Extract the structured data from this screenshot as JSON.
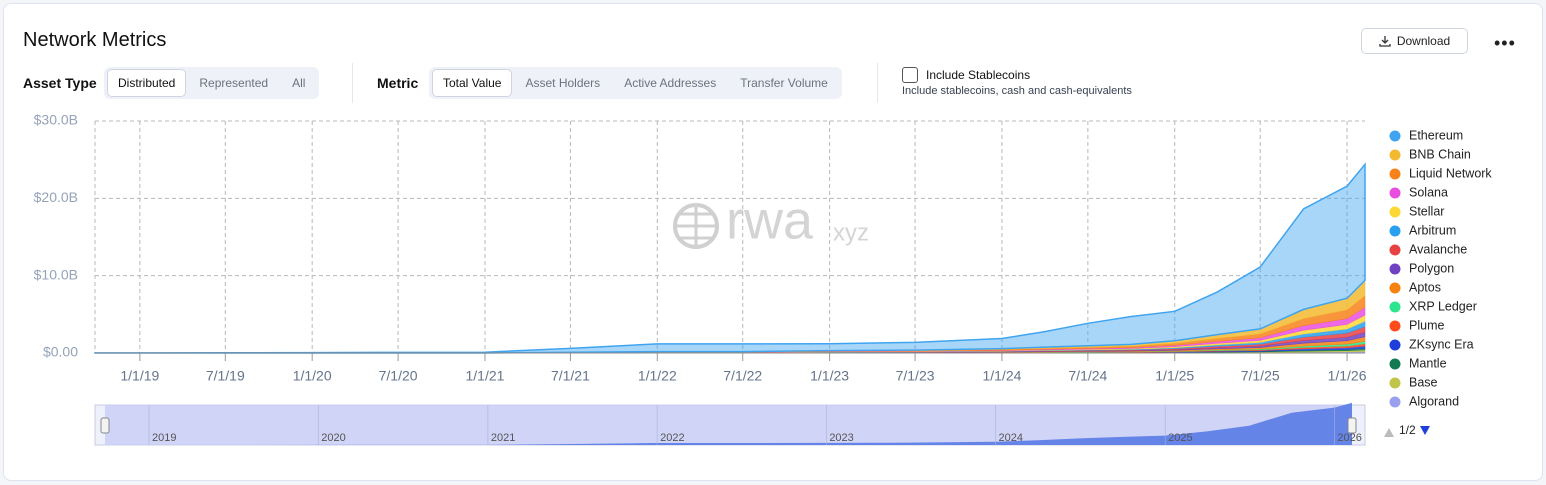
{
  "header": {
    "title": "Network Metrics",
    "download": "Download"
  },
  "filters": {
    "asset_type": {
      "label": "Asset Type",
      "options": [
        "Distributed",
        "Represented",
        "All"
      ],
      "selected": 0
    },
    "metric": {
      "label": "Metric",
      "options": [
        "Total Value",
        "Asset Holders",
        "Active Addresses",
        "Transfer Volume"
      ],
      "selected": 0
    },
    "stablecoins": {
      "label": "Include Stablecoins",
      "description": "Include stablecoins, cash and cash-equivalents",
      "checked": false
    }
  },
  "chart_data": {
    "type": "stacked-area",
    "watermark": [
      "rwa",
      "xyz"
    ],
    "legend_page": "1/2",
    "navigator_labels": [
      "2019",
      "2020",
      "2021",
      "2022",
      "2023",
      "2024",
      "2025",
      "2026"
    ],
    "x": [
      "9/28/18",
      "1/1/19",
      "7/1/19",
      "1/1/20",
      "7/1/20",
      "1/1/21",
      "7/1/21",
      "1/1/22",
      "7/1/22",
      "1/1/23",
      "7/1/23",
      "1/1/24",
      "4/1/24",
      "7/1/24",
      "10/1/24",
      "1/1/25",
      "4/1/25",
      "7/1/25",
      "10/1/25",
      "1/1/26",
      "2/8/26"
    ],
    "xlim": [
      "9/28/18",
      "2/8/26"
    ],
    "xticks": [
      "1/1/19",
      "7/1/19",
      "1/1/20",
      "7/1/20",
      "1/1/21",
      "7/1/21",
      "1/1/22",
      "7/1/22",
      "1/1/23",
      "7/1/23",
      "1/1/24",
      "7/1/24",
      "1/1/25",
      "7/1/25",
      "1/1/26"
    ],
    "ylim": [
      0,
      30
    ],
    "yticks": [
      {
        "value": 0,
        "label": "$0.00"
      },
      {
        "value": 10,
        "label": "$10.0B"
      },
      {
        "value": 20,
        "label": "$20.0B"
      },
      {
        "value": 30,
        "label": "$30.0B"
      }
    ],
    "grid": true,
    "series": [
      {
        "name": "Ethereum",
        "color": "#3fa4f0",
        "values": [
          0.01,
          0.02,
          0.03,
          0.05,
          0.08,
          0.1,
          0.5,
          1.0,
          1.0,
          0.9,
          1.0,
          1.3,
          2.0,
          2.9,
          3.6,
          3.8,
          5.5,
          8.0,
          13.0,
          14.5,
          15.0
        ]
      },
      {
        "name": "BNB Chain",
        "color": "#f3ba2f",
        "values": [
          0,
          0,
          0,
          0,
          0,
          0,
          0.02,
          0.04,
          0.04,
          0.06,
          0.08,
          0.12,
          0.16,
          0.2,
          0.24,
          0.34,
          0.5,
          0.66,
          1.2,
          1.5,
          2.0
        ]
      },
      {
        "name": "Liquid Network",
        "color": "#f7821b",
        "values": [
          0,
          0,
          0,
          0,
          0,
          0,
          0.02,
          0.03,
          0.03,
          0.05,
          0.06,
          0.09,
          0.12,
          0.15,
          0.18,
          0.26,
          0.38,
          0.5,
          0.9,
          1.13,
          1.5
        ]
      },
      {
        "name": "Solana",
        "color": "#e94de0",
        "values": [
          0,
          0,
          0,
          0,
          0,
          0,
          0.01,
          0.02,
          0.02,
          0.03,
          0.04,
          0.06,
          0.08,
          0.1,
          0.12,
          0.17,
          0.25,
          0.33,
          0.6,
          0.75,
          1.0
        ]
      },
      {
        "name": "Stellar",
        "color": "#fdd835",
        "values": [
          0,
          0,
          0,
          0,
          0,
          0,
          0.01,
          0.02,
          0.02,
          0.02,
          0.03,
          0.05,
          0.06,
          0.08,
          0.1,
          0.14,
          0.2,
          0.26,
          0.48,
          0.6,
          0.8
        ]
      },
      {
        "name": "Arbitrum",
        "color": "#28a0f0",
        "values": [
          0,
          0,
          0,
          0,
          0,
          0,
          0.01,
          0.01,
          0.01,
          0.02,
          0.03,
          0.04,
          0.06,
          0.07,
          0.08,
          0.12,
          0.18,
          0.23,
          0.42,
          0.53,
          0.7
        ]
      },
      {
        "name": "Avalanche",
        "color": "#e84142",
        "values": [
          0,
          0,
          0,
          0,
          0,
          0,
          0.01,
          0.01,
          0.01,
          0.02,
          0.03,
          0.04,
          0.06,
          0.07,
          0.08,
          0.12,
          0.18,
          0.23,
          0.42,
          0.53,
          0.7
        ]
      },
      {
        "name": "Polygon",
        "color": "#6f42c1",
        "values": [
          0,
          0,
          0,
          0,
          0,
          0,
          0.01,
          0.01,
          0.01,
          0.02,
          0.02,
          0.04,
          0.05,
          0.06,
          0.07,
          0.1,
          0.15,
          0.2,
          0.36,
          0.45,
          0.6
        ]
      },
      {
        "name": "Aptos",
        "color": "#f5820d",
        "values": [
          0,
          0,
          0,
          0,
          0,
          0,
          0.01,
          0.01,
          0.01,
          0.02,
          0.02,
          0.04,
          0.05,
          0.06,
          0.07,
          0.1,
          0.15,
          0.2,
          0.36,
          0.45,
          0.6
        ]
      },
      {
        "name": "XRP Ledger",
        "color": "#2de58f",
        "values": [
          0,
          0,
          0,
          0,
          0,
          0,
          0,
          0.01,
          0.01,
          0.01,
          0.01,
          0.02,
          0.02,
          0.03,
          0.04,
          0.05,
          0.08,
          0.1,
          0.18,
          0.23,
          0.3
        ]
      },
      {
        "name": "Plume",
        "color": "#ff4a1c",
        "values": [
          0,
          0,
          0,
          0,
          0,
          0,
          0,
          0.01,
          0.01,
          0.01,
          0.01,
          0.02,
          0.02,
          0.03,
          0.04,
          0.05,
          0.08,
          0.1,
          0.18,
          0.23,
          0.3
        ]
      },
      {
        "name": "ZKsync Era",
        "color": "#1e3fdc",
        "values": [
          0,
          0,
          0,
          0,
          0,
          0,
          0,
          0.01,
          0.01,
          0.01,
          0.01,
          0.02,
          0.02,
          0.03,
          0.04,
          0.05,
          0.08,
          0.1,
          0.18,
          0.23,
          0.3
        ]
      },
      {
        "name": "Mantle",
        "color": "#127a50",
        "values": [
          0,
          0,
          0,
          0,
          0,
          0,
          0,
          0,
          0,
          0.01,
          0.01,
          0.01,
          0.02,
          0.02,
          0.02,
          0.03,
          0.05,
          0.07,
          0.12,
          0.15,
          0.2
        ]
      },
      {
        "name": "Base",
        "color": "#c0c448",
        "values": [
          0,
          0,
          0,
          0,
          0,
          0,
          0,
          0,
          0,
          0.01,
          0.01,
          0.01,
          0.02,
          0.02,
          0.02,
          0.03,
          0.05,
          0.07,
          0.12,
          0.15,
          0.2
        ]
      },
      {
        "name": "Algorand",
        "color": "#9aa0ee",
        "values": [
          0,
          0,
          0,
          0,
          0,
          0,
          0,
          0,
          0,
          0.01,
          0.01,
          0.01,
          0.02,
          0.02,
          0.02,
          0.03,
          0.05,
          0.07,
          0.12,
          0.15,
          0.2
        ]
      }
    ]
  }
}
